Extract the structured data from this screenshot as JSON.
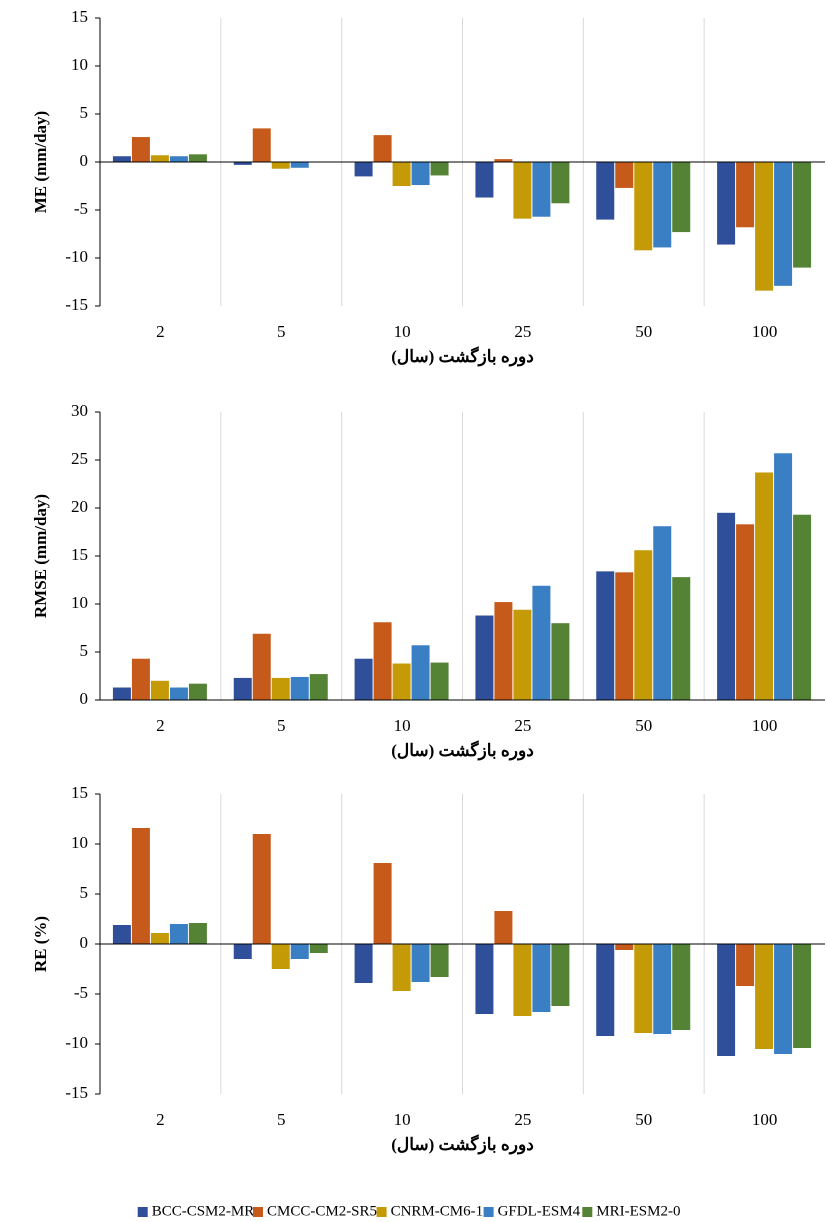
{
  "chart_data": [
    {
      "type": "bar",
      "y_label": "ME (mm/day)",
      "x_label": "دوره بازگشت (سال)",
      "categories": [
        "2",
        "5",
        "10",
        "25",
        "50",
        "100"
      ],
      "ylim": [
        -15,
        15
      ],
      "yticks": [
        -15,
        -10,
        -5,
        0,
        5,
        10,
        15
      ],
      "series": [
        {
          "name": "BCC-CSM2-MR",
          "color": "#2f4f9a",
          "values": [
            0.6,
            -0.3,
            -1.5,
            -3.7,
            -6.0,
            -8.6
          ]
        },
        {
          "name": "CMCC-CM2-SR5",
          "color": "#c65a1b",
          "values": [
            2.6,
            3.5,
            2.8,
            0.3,
            -2.7,
            -6.8
          ]
        },
        {
          "name": "CNRM-CM6-1",
          "color": "#c49a07",
          "values": [
            0.7,
            -0.7,
            -2.5,
            -5.9,
            -9.2,
            -13.4
          ]
        },
        {
          "name": "GFDL-ESM4",
          "color": "#3a7ec3",
          "values": [
            0.6,
            -0.6,
            -2.4,
            -5.7,
            -8.9,
            -12.9
          ]
        },
        {
          "name": "MRI-ESM2-0",
          "color": "#558335",
          "values": [
            0.8,
            0,
            -1.4,
            -4.3,
            -7.3,
            -11.0
          ]
        }
      ]
    },
    {
      "type": "bar",
      "y_label": "RMSE (mm/day)",
      "x_label": "دوره بازگشت (سال)",
      "categories": [
        "2",
        "5",
        "10",
        "25",
        "50",
        "100"
      ],
      "ylim": [
        0,
        30
      ],
      "yticks": [
        0,
        5,
        10,
        15,
        20,
        25,
        30
      ],
      "series": [
        {
          "values": [
            1.3,
            2.3,
            4.3,
            8.8,
            13.4,
            19.5
          ]
        },
        {
          "values": [
            4.3,
            6.9,
            8.1,
            10.2,
            13.3,
            18.3
          ]
        },
        {
          "values": [
            2.0,
            2.3,
            3.8,
            9.4,
            15.6,
            23.7
          ]
        },
        {
          "values": [
            1.3,
            2.4,
            5.7,
            11.9,
            18.1,
            25.7
          ]
        },
        {
          "values": [
            1.7,
            2.7,
            3.9,
            8.0,
            12.8,
            19.3
          ]
        }
      ]
    },
    {
      "type": "bar",
      "y_label": "RE (%)",
      "x_label": "دوره بازگشت (سال)",
      "categories": [
        "2",
        "5",
        "10",
        "25",
        "50",
        "100"
      ],
      "ylim": [
        -15,
        15
      ],
      "yticks": [
        -15,
        -10,
        -5,
        0,
        5,
        10,
        15
      ],
      "series": [
        {
          "values": [
            1.9,
            -1.5,
            -3.9,
            -7.0,
            -9.2,
            -11.2
          ]
        },
        {
          "values": [
            11.6,
            11.0,
            8.1,
            3.3,
            -0.6,
            -4.2
          ]
        },
        {
          "values": [
            1.1,
            -2.5,
            -4.7,
            -7.2,
            -8.9,
            -10.5
          ]
        },
        {
          "values": [
            2.0,
            -1.5,
            -3.8,
            -6.8,
            -9.0,
            -11.0
          ]
        },
        {
          "values": [
            2.1,
            -0.9,
            -3.3,
            -6.2,
            -8.6,
            -10.4
          ]
        }
      ]
    }
  ]
}
